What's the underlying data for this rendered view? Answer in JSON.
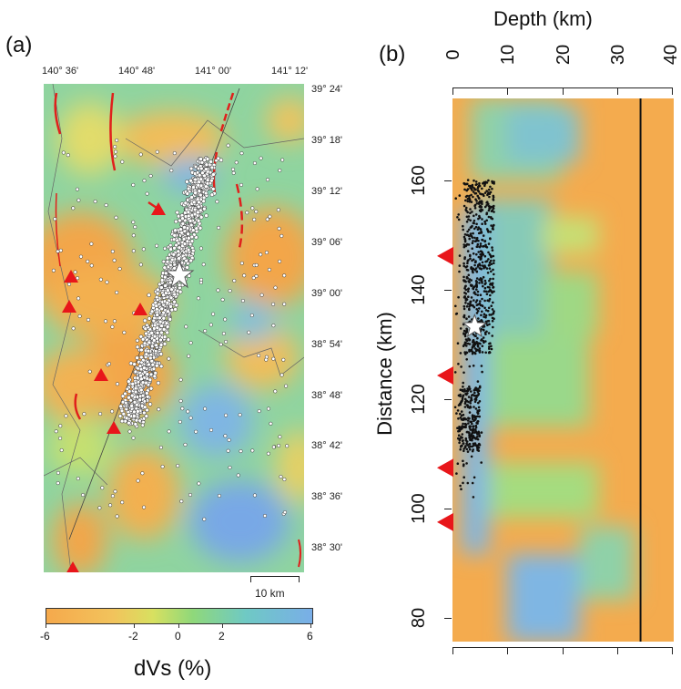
{
  "panel_a": {
    "label": "(a)",
    "top_ticks": [
      "140° 36'",
      "140° 48'",
      "141° 00'",
      "141° 12'"
    ],
    "right_ticks": [
      "39° 24'",
      "39° 18'",
      "39° 12'",
      "39° 06'",
      "39° 00'",
      "38° 54'",
      "38° 48'",
      "38° 42'",
      "38° 36'",
      "38° 30'"
    ],
    "scale_bar": "10 km"
  },
  "panel_b": {
    "label": "(b)",
    "x_title": "Depth (km)",
    "y_title": "Distance (km)",
    "x_ticks": [
      "0",
      "10",
      "20",
      "30",
      "40"
    ],
    "y_ticks": [
      "160",
      "140",
      "120",
      "100",
      "80"
    ]
  },
  "colorbar": {
    "title": "dVs (%)",
    "ticks": [
      "-6",
      "-2",
      "0",
      "2",
      "6"
    ],
    "colors": [
      "#f5a94c",
      "#f2c35c",
      "#d8e060",
      "#8fd87a",
      "#6fc9c4",
      "#79aee8"
    ]
  },
  "chart_data": [
    {
      "type": "heatmap",
      "title": "(a)",
      "xlabel": "",
      "ylabel": "",
      "xlim": [
        "140° 31'",
        "141° 16'"
      ],
      "ylim": [
        "38° 27'",
        "39° 24'"
      ],
      "x_tick_labels": [
        "140° 36'",
        "140° 48'",
        "141° 00'",
        "141° 12'"
      ],
      "y_tick_labels": [
        "39° 24'",
        "39° 18'",
        "39° 12'",
        "39° 06'",
        "39° 00'",
        "38° 54'",
        "38° 48'",
        "38° 42'",
        "38° 36'",
        "38° 30'"
      ],
      "color_variable": "dVs (%)",
      "mainshock": {
        "lon": "140° 53'",
        "lat": "39° 02'"
      },
      "volcanoes": [
        {
          "lon": "140° 37'",
          "lat": "39° 02'"
        },
        {
          "lon": "140° 37'",
          "lat": "38° 59'"
        },
        {
          "lon": "140° 45'",
          "lat": "38° 58'"
        },
        {
          "lon": "140° 40'",
          "lat": "38° 49'"
        },
        {
          "lon": "140° 42'",
          "lat": "38° 44'"
        },
        {
          "lon": "140° 55'",
          "lat": "39° 10'"
        },
        {
          "lon": "140° 37'",
          "lat": "38° 27'"
        }
      ]
    },
    {
      "type": "heatmap",
      "title": "(b)",
      "xlabel": "Depth (km)",
      "ylabel": "Distance (km)",
      "xlim": [
        0,
        40
      ],
      "ylim": [
        75,
        175
      ],
      "x_ticks": [
        0,
        10,
        20,
        30,
        40
      ],
      "y_ticks": [
        80,
        100,
        120,
        140,
        160
      ],
      "color_variable": "dVs (%)",
      "moho_depth": 34,
      "mainshock": {
        "depth": 4,
        "distance": 133
      },
      "volcanoes_distance": [
        146,
        124,
        107,
        97
      ],
      "hypocenter_depth_range": [
        0,
        8
      ],
      "hypocenter_distance_range": [
        100,
        160
      ]
    }
  ]
}
